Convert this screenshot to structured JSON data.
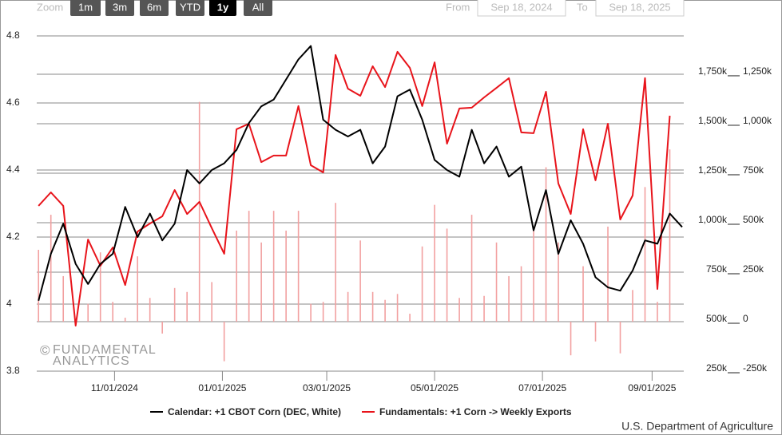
{
  "chart_data": {
    "type": "line",
    "range_selector": {
      "label": "Zoom",
      "buttons": [
        "1m",
        "3m",
        "6m",
        "YTD",
        "1y",
        "All"
      ],
      "selected": 4
    },
    "date_range": {
      "from_label": "From",
      "from": "Sep 18, 2024",
      "to_label": "To",
      "to": "Sep 18, 2025"
    },
    "watermark": [
      "FUNDAMENTAL",
      "ANALYTICS"
    ],
    "source": "U.S. Department of Agriculture",
    "x": [
      "2024-09-19",
      "2024-09-26",
      "2024-10-03",
      "2024-10-10",
      "2024-10-17",
      "2024-10-24",
      "2024-10-31",
      "2024-11-07",
      "2024-11-14",
      "2024-11-21",
      "2024-11-28",
      "2024-12-05",
      "2024-12-12",
      "2024-12-19",
      "2024-12-26",
      "2025-01-02",
      "2025-01-09",
      "2025-01-16",
      "2025-01-23",
      "2025-01-30",
      "2025-02-06",
      "2025-02-13",
      "2025-02-20",
      "2025-02-27",
      "2025-03-06",
      "2025-03-13",
      "2025-03-20",
      "2025-03-27",
      "2025-04-03",
      "2025-04-10",
      "2025-04-17",
      "2025-04-24",
      "2025-05-01",
      "2025-05-08",
      "2025-05-15",
      "2025-05-22",
      "2025-05-29",
      "2025-06-05",
      "2025-06-12",
      "2025-06-19",
      "2025-06-26",
      "2025-07-03",
      "2025-07-10",
      "2025-07-17",
      "2025-07-24",
      "2025-07-31",
      "2025-08-07",
      "2025-08-14",
      "2025-08-21",
      "2025-08-28",
      "2025-09-04",
      "2025-09-11",
      "2025-09-18"
    ],
    "xlim": [
      "2024-09-18",
      "2025-09-18"
    ],
    "xticks": [
      {
        "value": "2024-11-01",
        "label": "11/01/2024"
      },
      {
        "value": "2025-01-01",
        "label": "01/01/2025"
      },
      {
        "value": "2025-03-01",
        "label": "03/01/2025"
      },
      {
        "value": "2025-05-01",
        "label": "05/01/2025"
      },
      {
        "value": "2025-07-01",
        "label": "07/01/2025"
      },
      {
        "value": "2025-09-01",
        "label": "09/01/2025"
      }
    ],
    "ylim": [
      3.8,
      4.85
    ],
    "yticks": [
      3.8,
      4,
      4.2,
      4.4,
      4.6,
      4.8
    ],
    "y2lim": [
      250,
      2028
    ],
    "y2ticks": [
      {
        "value": 250,
        "label": "250k"
      },
      {
        "value": 500,
        "label": "500k"
      },
      {
        "value": 750,
        "label": "750k"
      },
      {
        "value": 1000,
        "label": "1,000k"
      },
      {
        "value": 1250,
        "label": "1,250k"
      },
      {
        "value": 1500,
        "label": "1,500k"
      },
      {
        "value": 1750,
        "label": "1,750k"
      }
    ],
    "y3lim": [
      -250,
      1528
    ],
    "y3ticks": [
      {
        "value": -250,
        "label": "-250k"
      },
      {
        "value": 0,
        "label": "0"
      },
      {
        "value": 250,
        "label": "250k"
      },
      {
        "value": 500,
        "label": "500k"
      },
      {
        "value": 750,
        "label": "750k"
      },
      {
        "value": 1000,
        "label": "1,000k"
      },
      {
        "value": 1250,
        "label": "1,250k"
      }
    ],
    "grid": true,
    "series": [
      {
        "name": "Calendar: +1 CBOT Corn (DEC, White)",
        "color": "#000000",
        "axis": "y",
        "values": [
          4.01,
          4.15,
          4.24,
          4.12,
          4.06,
          4.12,
          4.15,
          4.29,
          4.2,
          4.27,
          4.19,
          4.24,
          4.4,
          4.36,
          4.4,
          4.42,
          4.46,
          4.54,
          4.59,
          4.61,
          4.67,
          4.73,
          4.77,
          4.55,
          4.52,
          4.5,
          4.52,
          4.42,
          4.47,
          4.62,
          4.64,
          4.55,
          4.43,
          4.4,
          4.38,
          4.52,
          4.42,
          4.47,
          4.38,
          4.41,
          4.22,
          4.34,
          4.15,
          4.25,
          4.18,
          4.08,
          4.05,
          4.04,
          4.1,
          4.19,
          4.18,
          4.27,
          4.23
        ]
      },
      {
        "name": "Fundamentals: +1 Corn -> Weekly Exports",
        "color": "#e8141b",
        "axis": "y2",
        "values": [
          1085,
          1153,
          1085,
          480,
          915,
          782,
          875,
          685,
          955,
          996,
          1032,
          1165,
          1044,
          1105,
          972,
          843,
          1472,
          1500,
          1306,
          1339,
          1339,
          1589,
          1290,
          1254,
          1847,
          1677,
          1641,
          1790,
          1685,
          1863,
          1782,
          1589,
          1810,
          1399,
          1577,
          1581,
          1633,
          1681,
          1730,
          1456,
          1452,
          1661,
          1198,
          1044,
          1472,
          1214,
          1500,
          1016,
          1137,
          1730,
          665,
          1540,
          null
        ]
      },
      {
        "type": "bar",
        "color": "#f2a0a0",
        "axis": "y3",
        "values": [
          363,
          540,
          230,
          -20,
          90,
          350,
          100,
          20,
          330,
          120,
          -60,
          170,
          150,
          1110,
          200,
          -200,
          460,
          560,
          400,
          560,
          460,
          560,
          90,
          100,
          600,
          150,
          410,
          150,
          110,
          140,
          40,
          380,
          590,
          470,
          120,
          540,
          130,
          400,
          230,
          280,
          460,
          780,
          400,
          -170,
          280,
          -100,
          480,
          -160,
          160,
          680,
          100,
          870,
          null
        ]
      }
    ]
  }
}
